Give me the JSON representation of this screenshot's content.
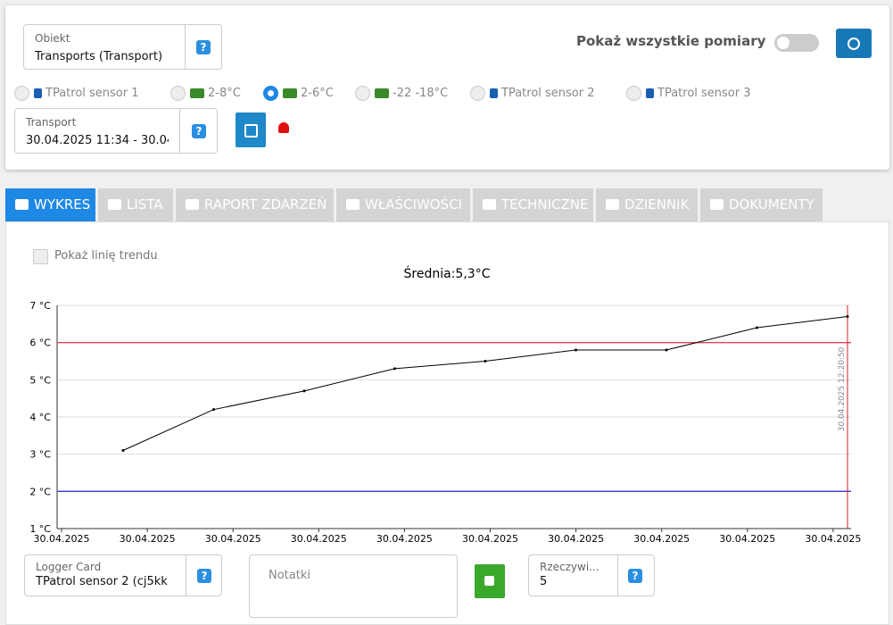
{
  "header": {
    "object_label": "Obiekt",
    "object_value": "Transports (Transport)",
    "show_all_label": "Pokaż wszystkie pomiary"
  },
  "sensors": {
    "items": [
      "TPatrol sensor 1",
      "2-8°C",
      "2-6°C",
      "-22 -18°C",
      "TPatrol sensor 2",
      "TPatrol sensor 3"
    ],
    "selected": 2
  },
  "transport": {
    "label": "Transport",
    "value": "30.04.2025 11:34 - 30.04."
  },
  "tabs": [
    "WYKRES",
    "LISTA",
    "RAPORT ZDARZEŃ",
    "WŁAŚCIWOŚCI",
    "TECHNICZNE",
    "DZIENNIK",
    "DOKUMENTY"
  ],
  "trend_label": "Pokaż linię trendu",
  "chart_data": {
    "type": "line",
    "title": "Średnia:5,3°C",
    "xticks": [
      "30.04.2025",
      "30.04.2025",
      "30.04.2025",
      "30.04.2025",
      "30.04.2025",
      "30.04.2025",
      "30.04.2025",
      "30.04.2025",
      "30.04.2025",
      "30.04.2025"
    ],
    "values": [
      3.1,
      4.2,
      4.7,
      5.3,
      5.5,
      5.8,
      5.8,
      6.4,
      6.7
    ],
    "color": "#000000",
    "ylim": [
      1,
      7
    ],
    "yticks": [
      {
        "value": 1,
        "label": "1 °C"
      },
      {
        "value": 2,
        "label": "2 °C"
      },
      {
        "value": 3,
        "label": "3 °C"
      },
      {
        "value": 4,
        "label": "4 °C"
      },
      {
        "value": 5,
        "label": "5 °C"
      },
      {
        "value": 6,
        "label": "6 °C"
      },
      {
        "value": 7,
        "label": "7 °C"
      }
    ],
    "grid": true,
    "thresholds": [
      {
        "value": 6,
        "color": "#e0405a"
      },
      {
        "value": 2,
        "color": "#3a3acc"
      }
    ],
    "marker_label": "30.04.2025 12:20:50"
  },
  "footer": {
    "logger_label": "Logger Card",
    "logger_value": "TPatrol sensor 2 (cj5kk",
    "notes_placeholder": "Notatki",
    "real_label": "Rzeczywi...",
    "real_value": "5"
  }
}
